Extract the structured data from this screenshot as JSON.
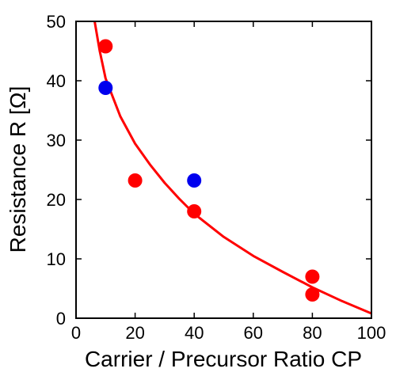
{
  "chart_data": {
    "type": "scatter",
    "xlabel": "Carrier / Precursor Ratio CP",
    "ylabel": "Resistance R [Ω]",
    "xlim": [
      0,
      100
    ],
    "ylim": [
      0,
      50
    ],
    "xticks": [
      0,
      20,
      40,
      60,
      80,
      100
    ],
    "yticks": [
      0,
      10,
      20,
      30,
      40,
      50
    ],
    "grid": false,
    "legend": "none",
    "series": [
      {
        "color": "#ff0000",
        "marker": "circle",
        "points": [
          {
            "x": 10,
            "y": 45.8
          },
          {
            "x": 20,
            "y": 23.2
          },
          {
            "x": 40,
            "y": 18.0
          },
          {
            "x": 80,
            "y": 7.0
          },
          {
            "x": 80,
            "y": 4.0
          }
        ]
      },
      {
        "color": "#0000ee",
        "marker": "circle",
        "points": [
          {
            "x": 10,
            "y": 38.8
          },
          {
            "x": 40,
            "y": 23.2
          }
        ]
      }
    ],
    "fit_curve": {
      "color": "#ff0000",
      "points": [
        {
          "x": 6.3,
          "y": 50.0
        },
        {
          "x": 8,
          "y": 45.1
        },
        {
          "x": 10,
          "y": 40.4
        },
        {
          "x": 15,
          "y": 34.0
        },
        {
          "x": 20,
          "y": 29.4
        },
        {
          "x": 25,
          "y": 25.9
        },
        {
          "x": 30,
          "y": 22.8
        },
        {
          "x": 35,
          "y": 20.1
        },
        {
          "x": 40,
          "y": 17.6
        },
        {
          "x": 50,
          "y": 13.7
        },
        {
          "x": 60,
          "y": 10.5
        },
        {
          "x": 70,
          "y": 7.8
        },
        {
          "x": 80,
          "y": 5.2
        },
        {
          "x": 90,
          "y": 2.9
        },
        {
          "x": 100,
          "y": 0.8
        }
      ]
    }
  }
}
